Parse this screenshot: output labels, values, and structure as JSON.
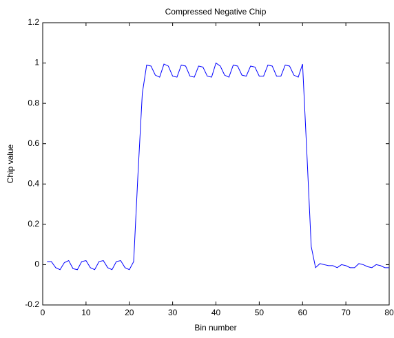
{
  "chart_data": {
    "type": "line",
    "title": "Compressed Negative Chip",
    "x_label": "Bin number",
    "y_label": "Chip value",
    "x": [
      1,
      2,
      3,
      4,
      5,
      6,
      7,
      8,
      9,
      10,
      11,
      12,
      13,
      14,
      15,
      16,
      17,
      18,
      19,
      20,
      21,
      22,
      23,
      24,
      25,
      26,
      27,
      28,
      29,
      30,
      31,
      32,
      33,
      34,
      35,
      36,
      37,
      38,
      39,
      40,
      41,
      42,
      43,
      44,
      45,
      46,
      47,
      48,
      49,
      50,
      51,
      52,
      53,
      54,
      55,
      56,
      57,
      58,
      59,
      60,
      61,
      62,
      63,
      64,
      65,
      66,
      67,
      68,
      69,
      70,
      71,
      72,
      73,
      74,
      75,
      76,
      77,
      78,
      79,
      80
    ],
    "series": [
      {
        "name": "Chip",
        "color": "#0000ff",
        "values": [
          0.015,
          0.015,
          -0.015,
          -0.025,
          0.01,
          0.02,
          -0.02,
          -0.025,
          0.015,
          0.02,
          -0.015,
          -0.025,
          0.015,
          0.02,
          -0.015,
          -0.025,
          0.015,
          0.02,
          -0.015,
          -0.025,
          0.015,
          0.45,
          0.85,
          0.99,
          0.985,
          0.94,
          0.93,
          0.995,
          0.985,
          0.935,
          0.93,
          0.99,
          0.985,
          0.935,
          0.93,
          0.985,
          0.98,
          0.935,
          0.93,
          1.0,
          0.985,
          0.94,
          0.93,
          0.99,
          0.985,
          0.94,
          0.935,
          0.985,
          0.98,
          0.935,
          0.935,
          0.99,
          0.985,
          0.935,
          0.935,
          0.99,
          0.985,
          0.94,
          0.93,
          0.995,
          0.55,
          0.09,
          -0.015,
          0.005,
          0,
          -0.005,
          -0.005,
          -0.015,
          0,
          -0.005,
          -0.015,
          -0.015,
          0.005,
          0,
          -0.01,
          -0.015,
          0,
          -0.005,
          -0.015,
          -0.015
        ]
      }
    ],
    "xlim": [
      0,
      80
    ],
    "ylim": [
      -0.2,
      1.2
    ],
    "xticks": [
      0,
      10,
      20,
      30,
      40,
      50,
      60,
      70,
      80
    ],
    "yticks": [
      -0.2,
      0,
      0.2,
      0.4,
      0.6,
      0.8,
      1,
      1.2
    ]
  }
}
